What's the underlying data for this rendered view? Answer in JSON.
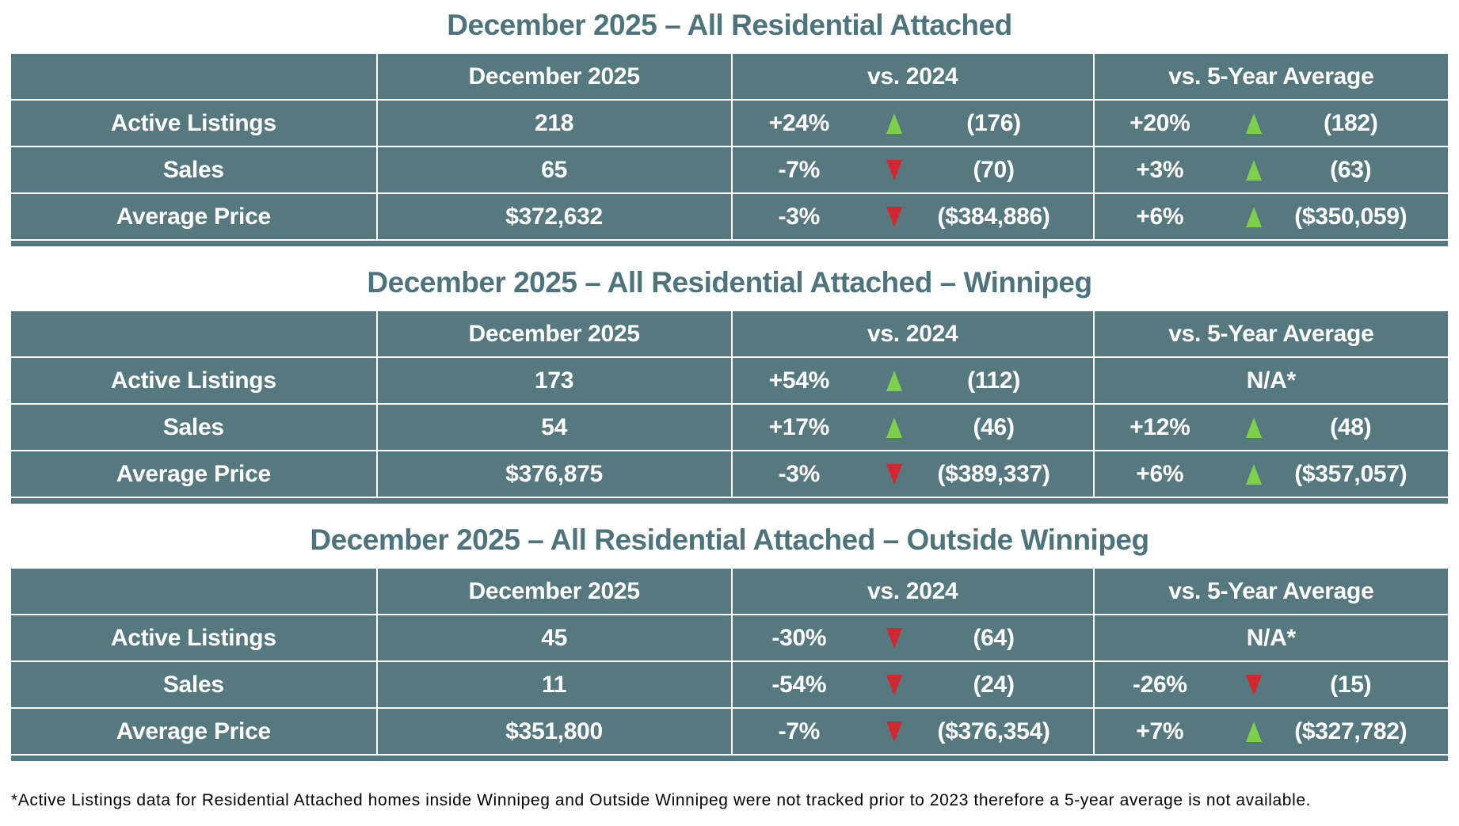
{
  "colors": {
    "table_bg": "#56797F",
    "title": "#4D747C",
    "grid": "#FFFFFF",
    "up_arrow": "#7CD149",
    "down_arrow": "#D22730",
    "cell_text": "#FFFFFF",
    "footnote_text": "#000000"
  },
  "icons": {
    "up": "up-triangle-icon",
    "down": "down-triangle-icon"
  },
  "footnote": "*Active Listings data for Residential Attached homes inside Winnipeg and Outside Winnipeg were not tracked prior to 2023 therefore a 5-year average is not available.",
  "chart_data": [
    {
      "type": "table",
      "title": "December 2025 – All Residential Attached",
      "columns": [
        "",
        "December 2025",
        "vs. 2024",
        "vs. 5-Year Average"
      ],
      "rows": [
        {
          "label": "Active Listings",
          "current": "218",
          "vs_2024": {
            "pct": "+24%",
            "direction": "up",
            "reference": "(176)"
          },
          "vs_5yr": {
            "pct": "+20%",
            "direction": "up",
            "reference": "(182)"
          }
        },
        {
          "label": "Sales",
          "current": "65",
          "vs_2024": {
            "pct": "-7%",
            "direction": "down",
            "reference": "(70)"
          },
          "vs_5yr": {
            "pct": "+3%",
            "direction": "up",
            "reference": "(63)"
          }
        },
        {
          "label": "Average Price",
          "current": "$372,632",
          "vs_2024": {
            "pct": "-3%",
            "direction": "down",
            "reference": "($384,886)"
          },
          "vs_5yr": {
            "pct": "+6%",
            "direction": "up",
            "reference": "($350,059)"
          }
        }
      ]
    },
    {
      "type": "table",
      "title": "December 2025 – All Residential Attached – Winnipeg",
      "columns": [
        "",
        "December 2025",
        "vs. 2024",
        "vs. 5-Year Average"
      ],
      "rows": [
        {
          "label": "Active Listings",
          "current": "173",
          "vs_2024": {
            "pct": "+54%",
            "direction": "up",
            "reference": "(112)"
          },
          "vs_5yr": {
            "na": "N/A*"
          }
        },
        {
          "label": "Sales",
          "current": "54",
          "vs_2024": {
            "pct": "+17%",
            "direction": "up",
            "reference": "(46)"
          },
          "vs_5yr": {
            "pct": "+12%",
            "direction": "up",
            "reference": "(48)"
          }
        },
        {
          "label": "Average Price",
          "current": "$376,875",
          "vs_2024": {
            "pct": "-3%",
            "direction": "down",
            "reference": "($389,337)"
          },
          "vs_5yr": {
            "pct": "+6%",
            "direction": "up",
            "reference": "($357,057)"
          }
        }
      ]
    },
    {
      "type": "table",
      "title": "December 2025 – All Residential Attached – Outside Winnipeg",
      "columns": [
        "",
        "December 2025",
        "vs. 2024",
        "vs. 5-Year Average"
      ],
      "rows": [
        {
          "label": "Active Listings",
          "current": "45",
          "vs_2024": {
            "pct": "-30%",
            "direction": "down",
            "reference": "(64)"
          },
          "vs_5yr": {
            "na": "N/A*"
          }
        },
        {
          "label": "Sales",
          "current": "11",
          "vs_2024": {
            "pct": "-54%",
            "direction": "down",
            "reference": "(24)"
          },
          "vs_5yr": {
            "pct": "-26%",
            "direction": "down",
            "reference": "(15)"
          }
        },
        {
          "label": "Average Price",
          "current": "$351,800",
          "vs_2024": {
            "pct": "-7%",
            "direction": "down",
            "reference": "($376,354)"
          },
          "vs_5yr": {
            "pct": "+7%",
            "direction": "up",
            "reference": "($327,782)"
          }
        }
      ]
    }
  ]
}
